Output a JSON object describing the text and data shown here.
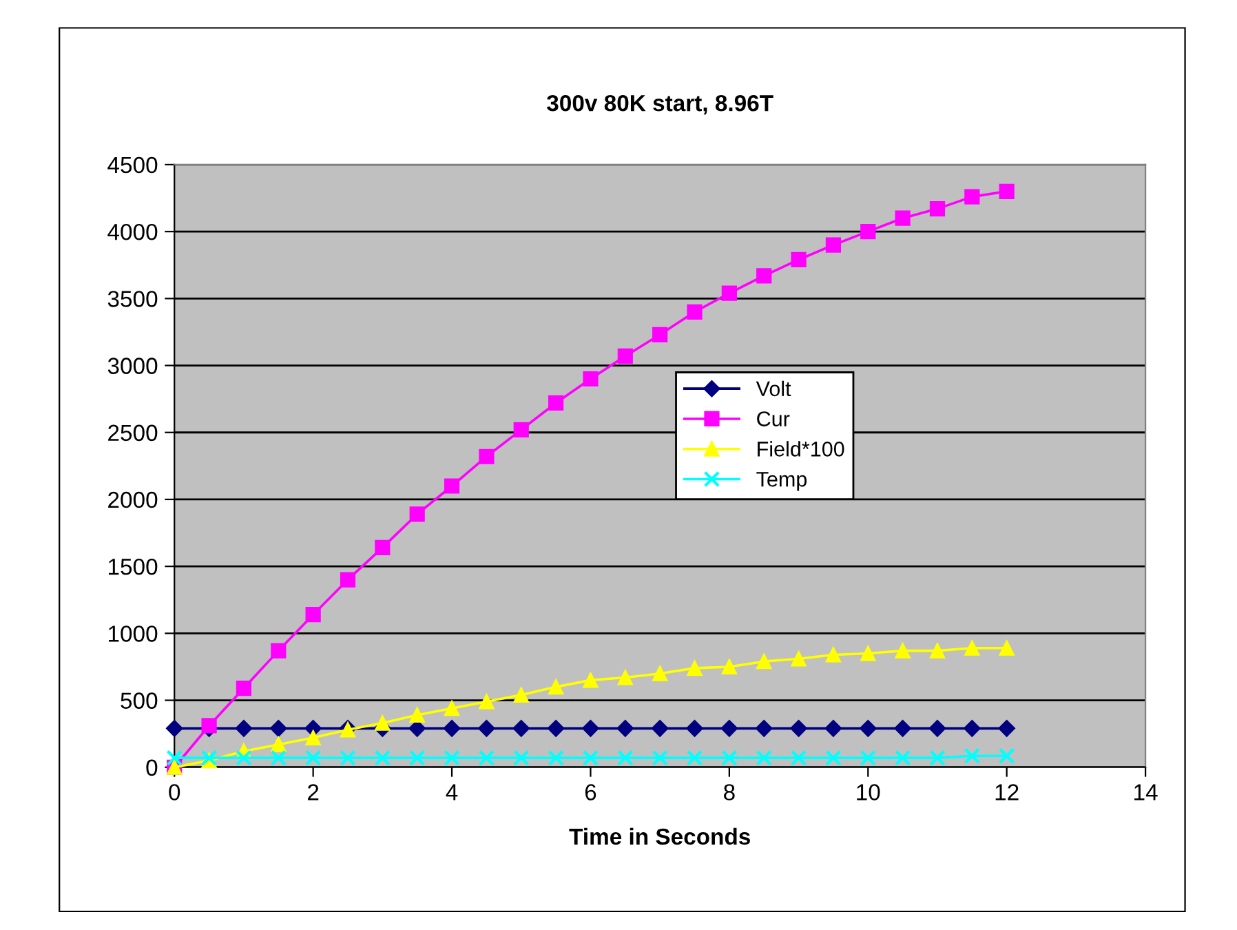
{
  "chart_data": {
    "type": "line",
    "title": "300v 80K start, 8.96T",
    "xlabel": "Time in Seconds",
    "x": [
      0,
      0.5,
      1,
      1.5,
      2,
      2.5,
      3,
      3.5,
      4,
      4.5,
      5,
      5.5,
      6,
      6.5,
      7,
      7.5,
      8,
      8.5,
      9,
      9.5,
      10,
      10.5,
      11,
      11.5,
      12
    ],
    "series": [
      {
        "name": "Volt",
        "color": "#000080",
        "marker": "diamond",
        "values": [
          290,
          290,
          290,
          290,
          290,
          290,
          290,
          290,
          290,
          290,
          290,
          290,
          290,
          290,
          290,
          290,
          290,
          290,
          290,
          290,
          290,
          290,
          290,
          290,
          290
        ]
      },
      {
        "name": "Cur",
        "color": "#ff00ff",
        "marker": "square",
        "values": [
          0,
          310,
          590,
          870,
          1140,
          1400,
          1640,
          1890,
          2100,
          2320,
          2520,
          2720,
          2900,
          3070,
          3230,
          3400,
          3540,
          3670,
          3790,
          3900,
          4000,
          4100,
          4170,
          4260,
          4300
        ]
      },
      {
        "name": "Field*100",
        "color": "#ffff00",
        "marker": "triangle",
        "values": [
          0,
          50,
          120,
          170,
          220,
          280,
          330,
          390,
          440,
          490,
          540,
          600,
          650,
          670,
          700,
          740,
          750,
          790,
          810,
          840,
          850,
          870,
          870,
          890,
          890
        ]
      },
      {
        "name": "Temp",
        "color": "#00ffff",
        "marker": "cross",
        "values": [
          70,
          70,
          70,
          70,
          70,
          70,
          70,
          70,
          70,
          70,
          70,
          70,
          70,
          70,
          70,
          70,
          70,
          70,
          70,
          70,
          70,
          70,
          70,
          85,
          85
        ]
      }
    ],
    "xlim": [
      0,
      14
    ],
    "xticks": [
      0,
      2,
      4,
      6,
      8,
      10,
      12,
      14
    ],
    "ylim": [
      0,
      4500
    ],
    "yticks": [
      0,
      500,
      1000,
      1500,
      2000,
      2500,
      3000,
      3500,
      4000,
      4500
    ],
    "grid": "y",
    "legend": "right"
  }
}
